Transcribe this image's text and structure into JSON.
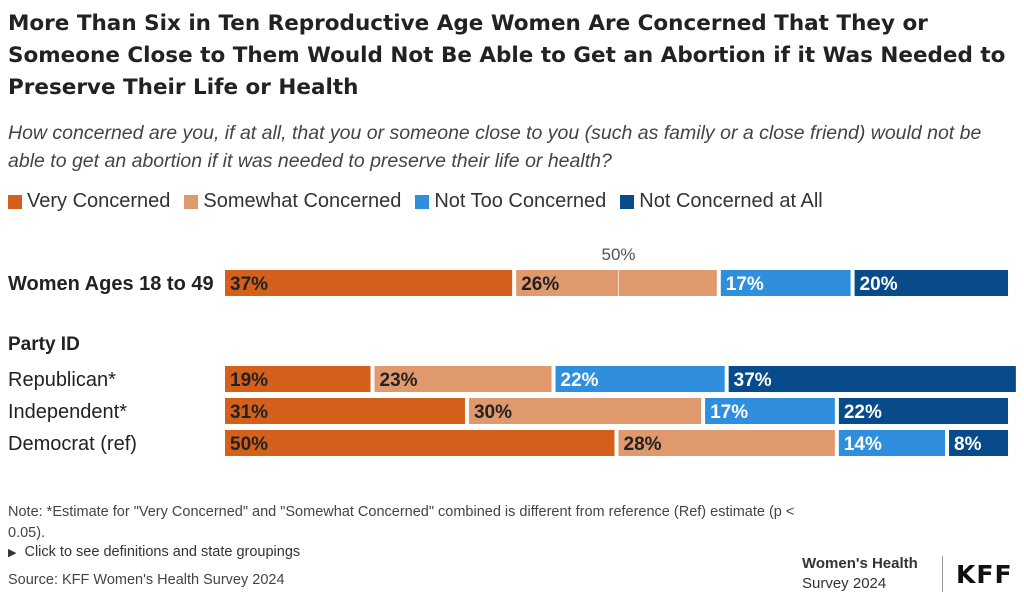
{
  "title": "More Than Six in Ten Reproductive Age Women Are Concerned That They or Someone Close to Them Would Not Be Able to Get an Abortion if it Was Needed to Preserve Their Life or Health",
  "subtitle": "How concerned are you, if at all, that you or someone close to you (such as family or a close friend) would not be able to get an abortion if it was needed to preserve their life or health?",
  "legend": [
    {
      "label": "Very Concerned",
      "color": "#d4601c"
    },
    {
      "label": "Somewhat Concerned",
      "color": "#e0996c"
    },
    {
      "label": "Not Too Concerned",
      "color": "#2f8fde"
    },
    {
      "label": "Not Concerned at All",
      "color": "#084b8a"
    }
  ],
  "note": "Note: *Estimate for \"Very Concerned\" and \"Somewhat Concerned\" combined is different from reference (Ref) estimate (p < 0.05).",
  "click_label": "Click to see definitions and state groupings",
  "source": "Source: KFF Women's Health Survey 2024",
  "brand": {
    "line1": "Women's Health",
    "line2": "Survey 2024",
    "logo": "KFF"
  },
  "chart_data": {
    "type": "bar",
    "orientation": "horizontal",
    "stacked": true,
    "reference_line": {
      "value": 50,
      "label": "50%"
    },
    "group_label": "Party ID",
    "categories": [
      "Women Ages 18 to 49",
      "Republican*",
      "Independent*",
      "Democrat (ref)"
    ],
    "series": [
      {
        "name": "Very Concerned",
        "values": [
          37,
          19,
          31,
          50
        ]
      },
      {
        "name": "Somewhat Concerned",
        "values": [
          26,
          23,
          30,
          28
        ]
      },
      {
        "name": "Not Too Concerned",
        "values": [
          17,
          22,
          17,
          14
        ]
      },
      {
        "name": "Not Concerned at All",
        "values": [
          20,
          37,
          22,
          8
        ]
      }
    ]
  }
}
